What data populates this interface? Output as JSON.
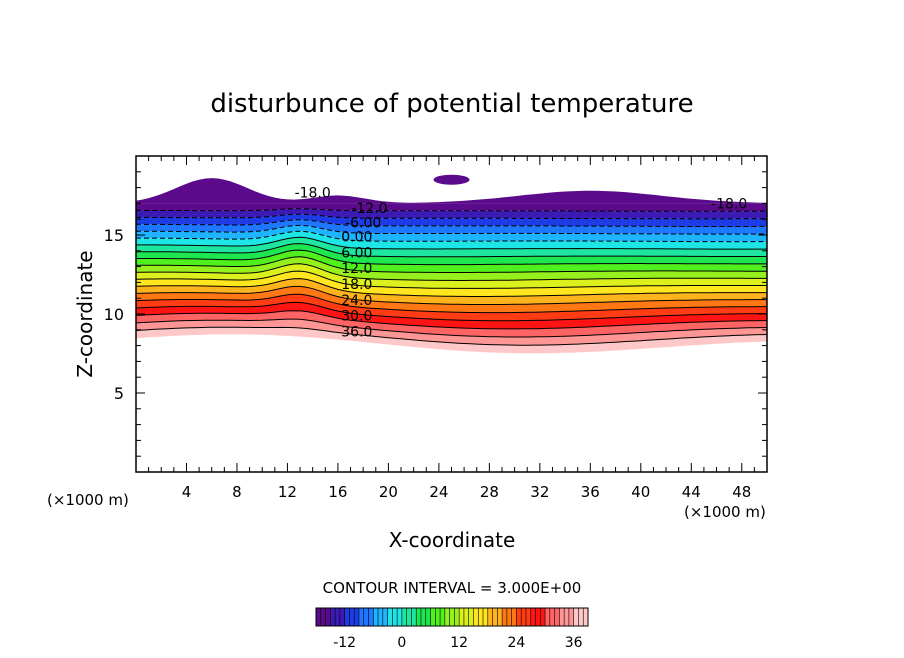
{
  "chart_data": {
    "type": "contour",
    "title": "disturbunce of potential temperature",
    "xlabel": "X-coordinate",
    "ylabel": "Z-coordinate",
    "x_unit_label": "(×1000 m)",
    "y_unit_label": "(×1000 m)",
    "xlim": [
      0,
      50
    ],
    "ylim": [
      0,
      20
    ],
    "x_ticks": [
      4,
      8,
      12,
      16,
      20,
      24,
      28,
      32,
      36,
      40,
      44,
      48
    ],
    "y_ticks": [
      5,
      10,
      15
    ],
    "contour_interval_text": "CONTOUR INTERVAL = 3.000E+00",
    "contour_labels": [
      {
        "text": "-18.0",
        "x": 14.0,
        "z": 17.7
      },
      {
        "text": "-18.0",
        "x": 47.0,
        "z": 17.0
      },
      {
        "text": "-12.0",
        "x": 18.5,
        "z": 16.7
      },
      {
        "text": "-6.00",
        "x": 18.0,
        "z": 15.8
      },
      {
        "text": "0.00",
        "x": 17.5,
        "z": 14.9
      },
      {
        "text": "6.00",
        "x": 17.5,
        "z": 13.9
      },
      {
        "text": "12.0",
        "x": 17.5,
        "z": 12.9
      },
      {
        "text": "18.0",
        "x": 17.5,
        "z": 11.9
      },
      {
        "text": "24.0",
        "x": 17.5,
        "z": 10.9
      },
      {
        "text": "30.0",
        "x": 17.5,
        "z": 9.9
      },
      {
        "text": "36.0",
        "x": 17.5,
        "z": 8.9
      }
    ],
    "colorbar": {
      "min": -18,
      "max": 39,
      "ticks": [
        -12,
        0,
        12,
        24,
        36
      ],
      "colors": [
        "#5a0a8a",
        "#3c1ab4",
        "#1e3ce6",
        "#1e78ff",
        "#1eb4ff",
        "#1ee6e6",
        "#1ee6a0",
        "#1ee650",
        "#50f01e",
        "#96f01e",
        "#dcf01e",
        "#ffe61e",
        "#ffb41e",
        "#ff7814",
        "#ff3c14",
        "#ff1414",
        "#ff6464",
        "#ff9696",
        "#ffc8c8"
      ]
    },
    "field_band": {
      "z_bottom_min": 7.7,
      "z_bottom_max": 8.5,
      "z_top": 17.0,
      "description_levels": [
        -18,
        39
      ]
    }
  }
}
